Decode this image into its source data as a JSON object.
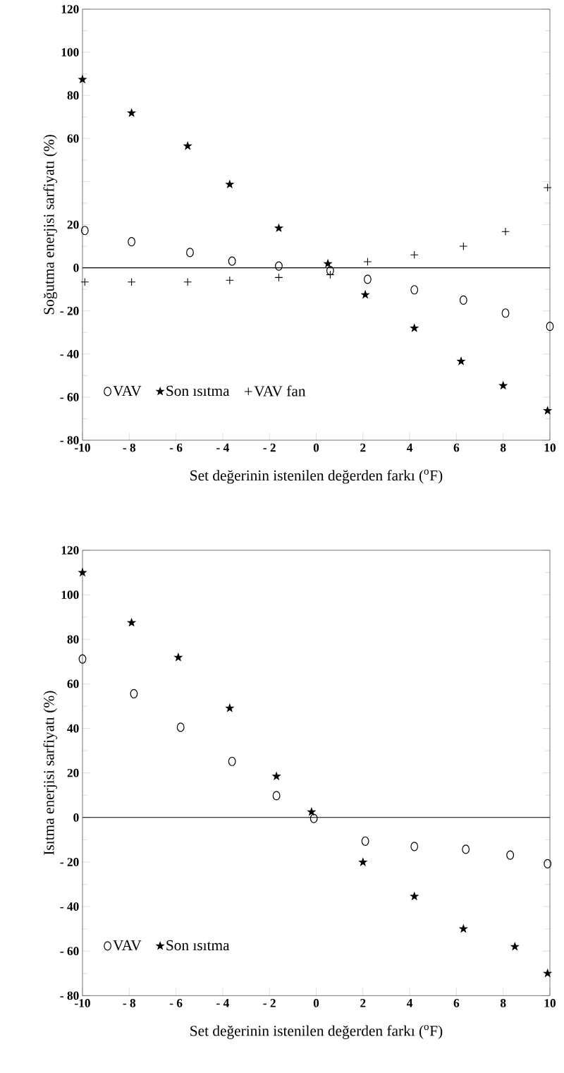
{
  "chart_data": [
    {
      "type": "scatter",
      "xlabel": "Set değerinin istenilen değerden farkı ($^{o}$F)",
      "ylabel": "Soğutma  enerjisi sarfiyatı (%)",
      "xlim": [
        -10,
        10
      ],
      "ylim": [
        -80,
        120
      ],
      "xticks": [
        -10,
        {
          "value": -8,
          "label": "- 8"
        },
        {
          "value": -6,
          "label": "- 6"
        },
        {
          "value": -4,
          "label": "- 4"
        },
        {
          "value": -2,
          "label": "- 2"
        },
        0,
        2,
        4,
        6,
        8,
        10
      ],
      "yticks": [
        {
          "value": -80,
          "label": "- 80"
        },
        {
          "value": -60,
          "label": "- 60"
        },
        {
          "value": -40,
          "label": "- 40"
        },
        {
          "value": -20,
          "label": "- 20"
        },
        0,
        20,
        {
          "value": 40,
          "label": null
        },
        60,
        80,
        100,
        120
      ],
      "ref_lines": [
        {
          "axis": "y",
          "value": 0
        }
      ],
      "legend": "bottom left",
      "series": [
        {
          "name": "VAV",
          "color": "#000000",
          "marker": "circle",
          "x": [
            -9.9,
            -7.9,
            -5.4,
            -3.6,
            -1.6,
            0.6,
            2.2,
            4.2,
            6.3,
            8.1,
            10
          ],
          "values": [
            17.3,
            12.1,
            7.1,
            3.1,
            0.8,
            -1.3,
            -5.3,
            -10.2,
            -15,
            -21,
            -27.2
          ]
        },
        {
          "name": "Son ısıtma",
          "color": "#000000",
          "marker": "star",
          "x": [
            -10,
            -7.9,
            -5.5,
            -3.7,
            -1.6,
            0.5,
            2.1,
            4.2,
            6.2,
            8,
            9.9
          ],
          "values": [
            87.4,
            71.8,
            56.5,
            38.7,
            18.4,
            1.9,
            -12.5,
            -28,
            -43.4,
            -54.7,
            -66.3
          ]
        },
        {
          "name": "VAV fan",
          "color": "#000000",
          "marker": "cross",
          "x": [
            -9.9,
            -7.9,
            -5.5,
            -3.7,
            -1.6,
            0.6,
            2.2,
            4.2,
            6.3,
            8.1,
            9.9
          ],
          "values": [
            -6.6,
            -6.6,
            -6.6,
            -5.8,
            -4.5,
            -3.2,
            2.8,
            6,
            10,
            16.8,
            37.2
          ]
        }
      ]
    },
    {
      "type": "scatter",
      "xlabel": "Set değerinin istenilen değerden farkı ($^{o}$F)",
      "ylabel": "Isıtma  enerjisi sarfiyatı (%)",
      "xlim": [
        -10,
        10
      ],
      "ylim": [
        -80,
        120
      ],
      "xticks": [
        -10,
        {
          "value": -8,
          "label": "- 8"
        },
        {
          "value": -6,
          "label": "- 6"
        },
        {
          "value": -4,
          "label": "- 4"
        },
        {
          "value": -2,
          "label": "- 2"
        },
        0,
        2,
        4,
        6,
        8,
        10
      ],
      "yticks": [
        {
          "value": -80,
          "label": "- 80"
        },
        {
          "value": -60,
          "label": "- 60"
        },
        {
          "value": -40,
          "label": "- 40"
        },
        {
          "value": -20,
          "label": "- 20"
        },
        0,
        20,
        40,
        60,
        80,
        100,
        120
      ],
      "ref_lines": [
        {
          "axis": "y",
          "value": 0
        }
      ],
      "legend": "bottom left",
      "series": [
        {
          "name": "VAV",
          "color": "#000000",
          "marker": "circle",
          "x": [
            -10,
            -7.8,
            -5.8,
            -3.6,
            -1.7,
            -0.1,
            2.1,
            4.2,
            6.4,
            8.3,
            9.9
          ],
          "values": [
            71.2,
            55.6,
            40.5,
            25.2,
            9.8,
            -0.4,
            -10.6,
            -13,
            -14.3,
            -16.9,
            -20.8
          ]
        },
        {
          "name": "Son ısıtma",
          "color": "#000000",
          "marker": "star",
          "x": [
            -10,
            -7.9,
            -5.9,
            -3.7,
            -1.7,
            -0.2,
            2,
            4.2,
            6.3,
            8.5,
            9.9
          ],
          "values": [
            110,
            87.5,
            71.9,
            49.1,
            18.5,
            2.5,
            -20.1,
            -35.4,
            -50,
            -58,
            -70
          ]
        }
      ]
    }
  ]
}
